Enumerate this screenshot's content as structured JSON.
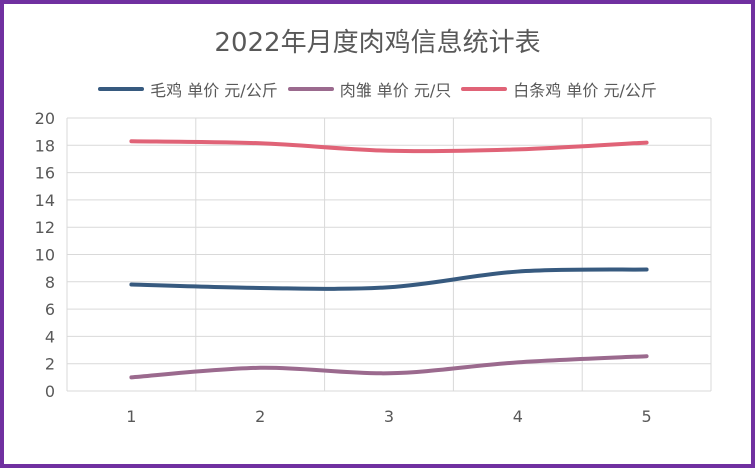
{
  "chart_data": {
    "type": "line",
    "title": "2022年月度肉鸡信息统计表",
    "xlabel": "",
    "ylabel": "",
    "categories": [
      "1",
      "2",
      "3",
      "4",
      "5"
    ],
    "ylim": [
      0,
      20
    ],
    "yticks": [
      0,
      2,
      4,
      6,
      8,
      10,
      12,
      14,
      16,
      18,
      20
    ],
    "grid": true,
    "smooth": true,
    "legend_position": "top",
    "series": [
      {
        "name": "毛鸡 单价 元/公斤",
        "color": "#375a7f",
        "values": [
          7.8,
          7.55,
          7.6,
          8.75,
          8.9
        ]
      },
      {
        "name": "肉雏 单价 元/只",
        "color": "#9b6a8e",
        "values": [
          1.0,
          1.7,
          1.3,
          2.1,
          2.55
        ]
      },
      {
        "name": "白条鸡 单价 元/公斤",
        "color": "#e06377",
        "values": [
          18.3,
          18.15,
          17.6,
          17.7,
          18.2
        ]
      }
    ]
  }
}
